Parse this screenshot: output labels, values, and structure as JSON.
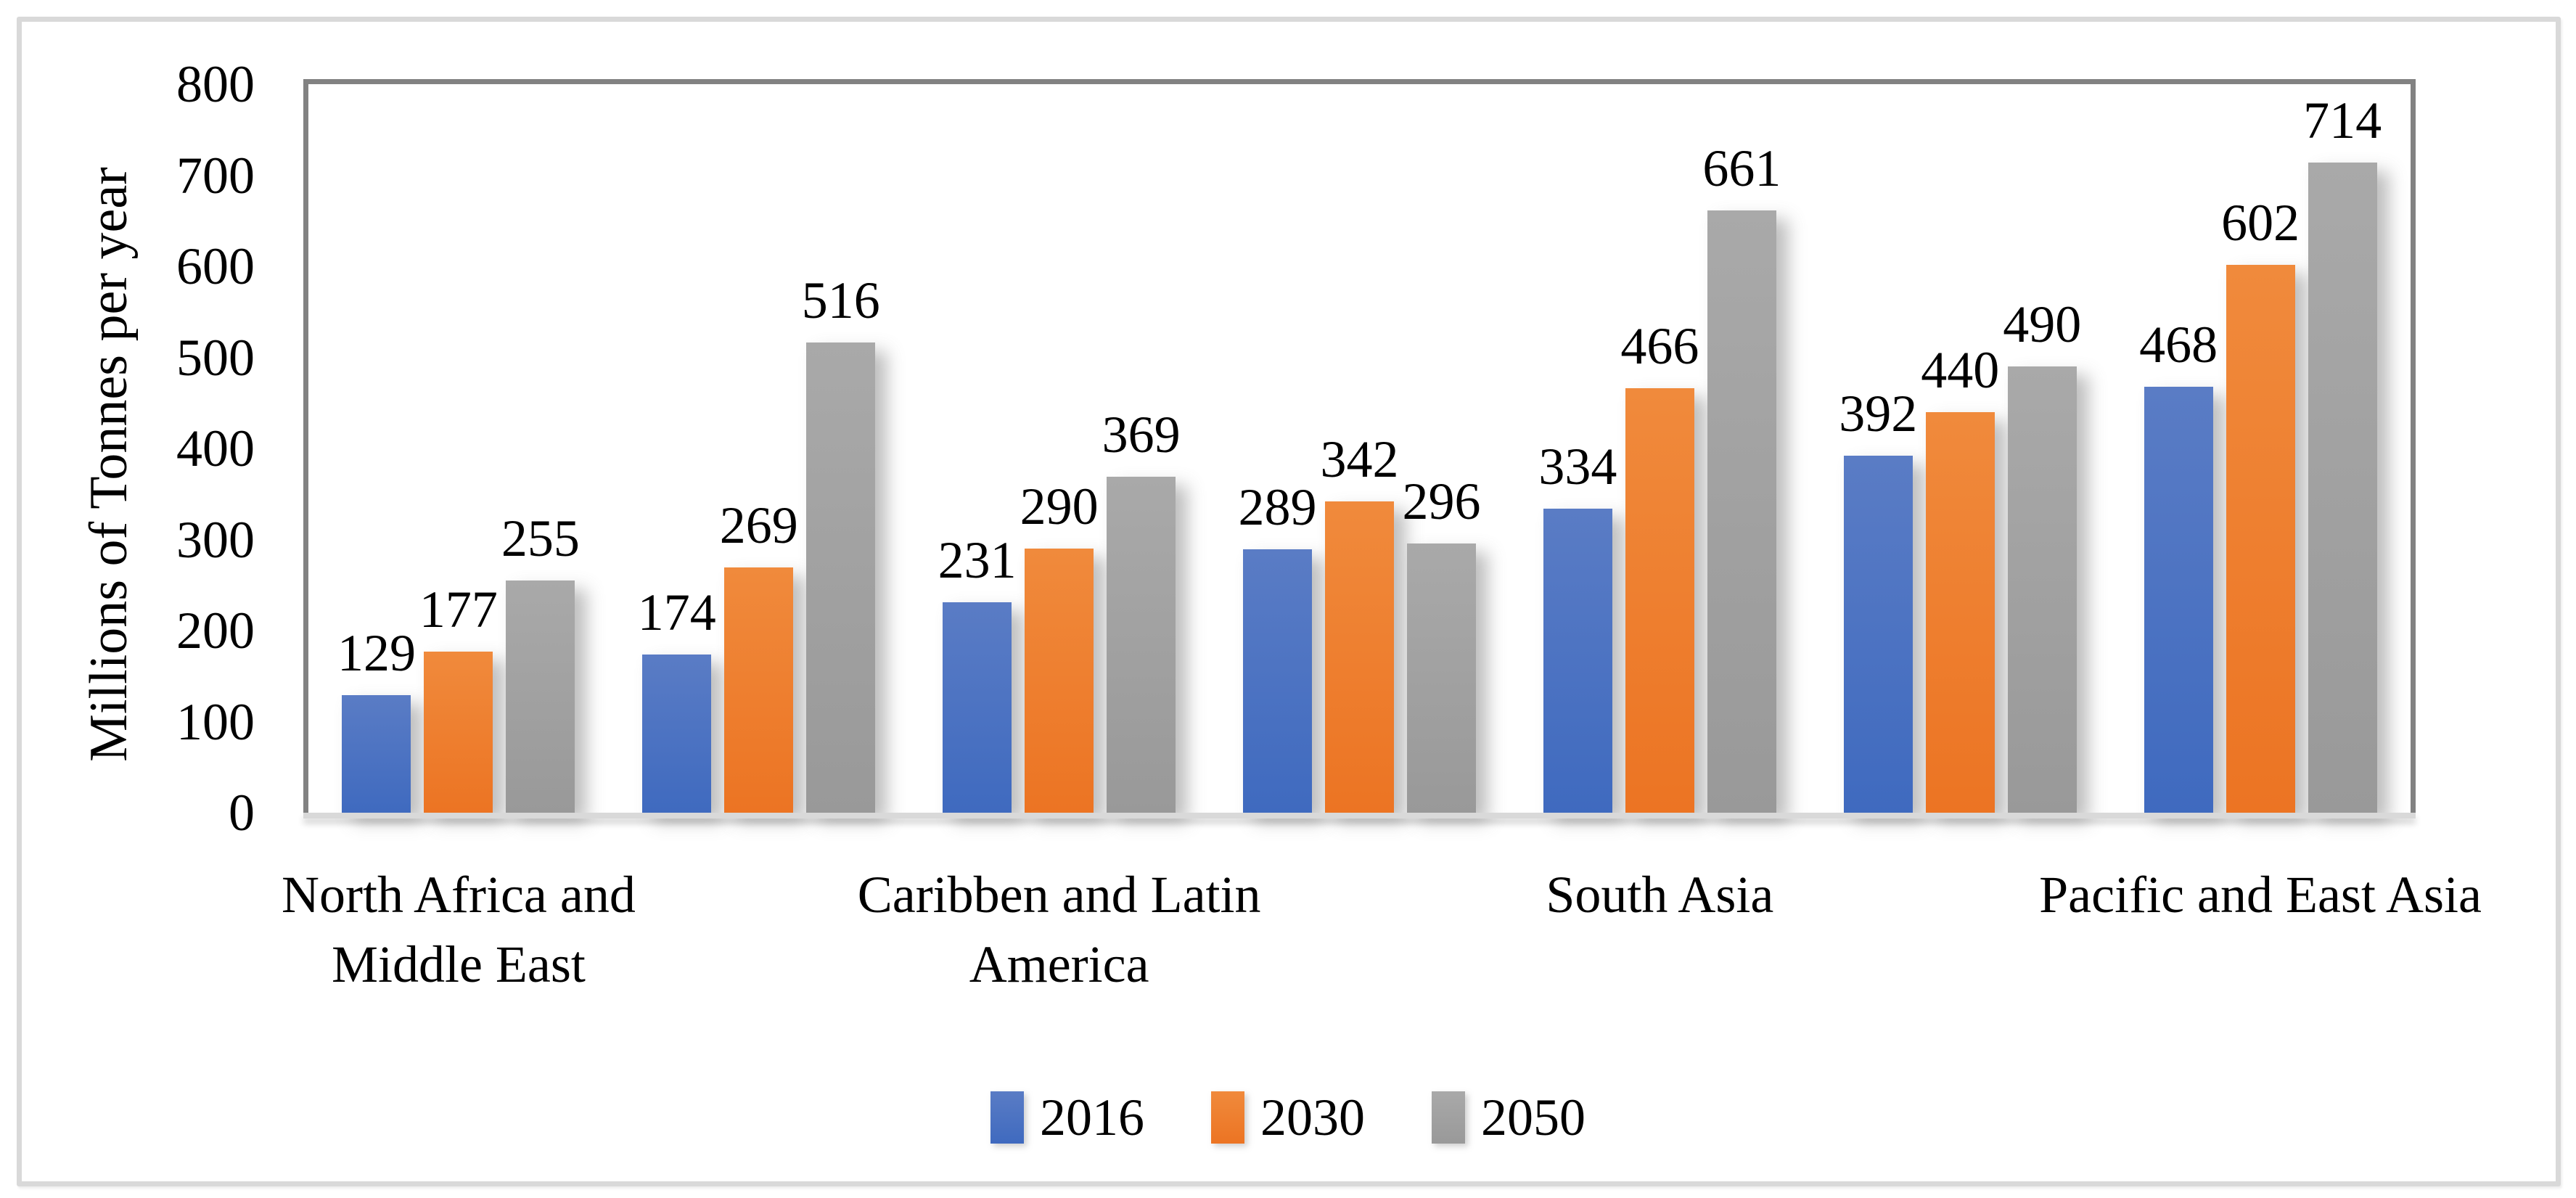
{
  "figure": {
    "background": "#ffffff",
    "frame_border_color": "#d9d9d9"
  },
  "chart_data": {
    "type": "bar",
    "title": "",
    "xlabel": "",
    "ylabel": "Millions of Tonnes per year",
    "ylim": [
      0,
      800
    ],
    "yticks": [
      0,
      100,
      200,
      300,
      400,
      500,
      600,
      700,
      800
    ],
    "grid": false,
    "data_labels": true,
    "legend_position": "bottom",
    "plot_border_color": "#828282",
    "baseline_color": "#d9d9d9",
    "text_color": "#000000",
    "categories": [
      "North Africa and\nMiddle East",
      "",
      "Caribben and Latin\nAmerica",
      "",
      "South Asia",
      "",
      "Pacific and East Asia"
    ],
    "series": [
      {
        "name": "2016",
        "color": "#4472c4",
        "gradient_top": "#5a7cc5",
        "gradient_bottom": "#3f6abf",
        "values": [
          129,
          174,
          231,
          289,
          334,
          392,
          468
        ]
      },
      {
        "name": "2030",
        "color": "#ed7d31",
        "gradient_top": "#f08a3c",
        "gradient_bottom": "#ec7423",
        "values": [
          177,
          269,
          290,
          342,
          466,
          440,
          602
        ]
      },
      {
        "name": "2050",
        "color": "#a5a5a5",
        "gradient_top": "#a9a9a9",
        "gradient_bottom": "#999999",
        "values": [
          255,
          516,
          369,
          296,
          661,
          490,
          714
        ]
      }
    ]
  }
}
